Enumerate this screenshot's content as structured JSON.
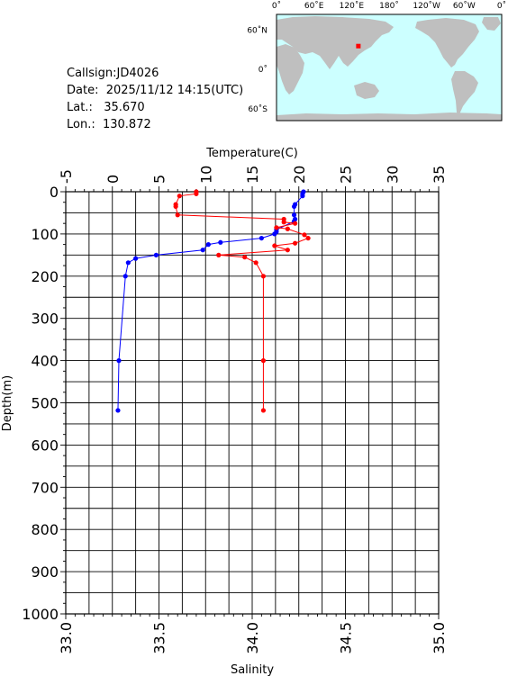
{
  "station": {
    "callsign_text": "Callsign:JD4026",
    "date_text": "Date:  2025/11/12 14:15(UTC)",
    "lat_text": "Lat.:   35.670",
    "lon_text": "Lon.:  130.872"
  },
  "map": {
    "lon_labels": [
      "0˚",
      "60˚E",
      "120˚E",
      "180˚",
      "120˚W",
      "60˚W",
      "0˚"
    ],
    "lat_labels": [
      "60˚N",
      "0˚",
      "60˚S"
    ],
    "station_lon": 130.872,
    "station_lat": 35.67,
    "ocean_color": "#ccffff",
    "land_color": "#bfbfbf",
    "marker_color": "#ff0000"
  },
  "chart_data": {
    "type": "line",
    "top_axis_label": "Temperature(C)",
    "bottom_axis_label": "Salinity",
    "left_axis_label": "Depth(m)",
    "temperature_range": [
      -5,
      35
    ],
    "temperature_ticks": [
      "-5",
      "0",
      "5",
      "10",
      "15",
      "20",
      "25",
      "30",
      "35"
    ],
    "salinity_range": [
      33.0,
      35.0
    ],
    "salinity_ticks": [
      "33.0",
      "33.5",
      "34.0",
      "34.5",
      "35.0"
    ],
    "depth_range": [
      0,
      1000
    ],
    "depth_ticks": [
      "0",
      "100",
      "200",
      "300",
      "400",
      "500",
      "600",
      "700",
      "800",
      "900",
      "1000"
    ],
    "grid": true,
    "series": [
      {
        "color": "#0000ff",
        "axis": "temperature",
        "points": [
          {
            "value": 20.5,
            "depth": 0
          },
          {
            "value": 20.4,
            "depth": 5
          },
          {
            "value": 20.4,
            "depth": 10
          },
          {
            "value": 19.6,
            "depth": 30
          },
          {
            "value": 19.5,
            "depth": 35
          },
          {
            "value": 19.5,
            "depth": 55
          },
          {
            "value": 19.6,
            "depth": 65
          },
          {
            "value": 19.5,
            "depth": 70
          },
          {
            "value": 17.6,
            "depth": 90
          },
          {
            "value": 17.6,
            "depth": 95
          },
          {
            "value": 17.4,
            "depth": 100
          },
          {
            "value": 16.0,
            "depth": 110
          },
          {
            "value": 11.6,
            "depth": 120
          },
          {
            "value": 10.3,
            "depth": 125
          },
          {
            "value": 9.7,
            "depth": 138
          },
          {
            "value": 4.7,
            "depth": 150
          },
          {
            "value": 2.5,
            "depth": 158
          },
          {
            "value": 1.7,
            "depth": 168
          },
          {
            "value": 1.4,
            "depth": 200
          },
          {
            "value": 0.7,
            "depth": 400
          },
          {
            "value": 0.6,
            "depth": 518
          }
        ]
      },
      {
        "color": "#ff0000",
        "axis": "salinity",
        "points": [
          {
            "value": 33.7,
            "depth": 0
          },
          {
            "value": 33.7,
            "depth": 5
          },
          {
            "value": 33.61,
            "depth": 10
          },
          {
            "value": 33.59,
            "depth": 30
          },
          {
            "value": 33.59,
            "depth": 35
          },
          {
            "value": 33.6,
            "depth": 55
          },
          {
            "value": 34.17,
            "depth": 65
          },
          {
            "value": 34.17,
            "depth": 72
          },
          {
            "value": 34.23,
            "depth": 75
          },
          {
            "value": 34.13,
            "depth": 85
          },
          {
            "value": 34.19,
            "depth": 88
          },
          {
            "value": 34.28,
            "depth": 102
          },
          {
            "value": 34.3,
            "depth": 110
          },
          {
            "value": 34.23,
            "depth": 122
          },
          {
            "value": 34.12,
            "depth": 128
          },
          {
            "value": 34.19,
            "depth": 138
          },
          {
            "value": 33.82,
            "depth": 150
          },
          {
            "value": 33.96,
            "depth": 155
          },
          {
            "value": 34.02,
            "depth": 168
          },
          {
            "value": 34.06,
            "depth": 200
          },
          {
            "value": 34.06,
            "depth": 400
          },
          {
            "value": 34.06,
            "depth": 518
          }
        ]
      }
    ]
  }
}
